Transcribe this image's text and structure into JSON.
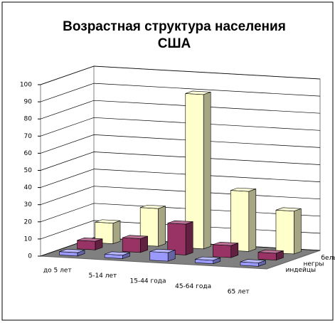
{
  "chart_data": {
    "type": "bar3d",
    "title": "Возрастная структура населения США",
    "categories": [
      "до 5 лет",
      "5-14 лет",
      "15-44 года",
      "45-64 года",
      "65 лет"
    ],
    "series": [
      {
        "name": "индейцы",
        "color": "#9999ff",
        "values": [
          2,
          2,
          5,
          2,
          2
        ]
      },
      {
        "name": "негры",
        "color": "#993366",
        "values": [
          5,
          8,
          18,
          7,
          4
        ]
      },
      {
        "name": "белые",
        "color": "#ffffcc",
        "values": [
          12,
          22,
          90,
          35,
          25
        ]
      }
    ],
    "ylim": [
      0,
      100
    ],
    "yticks": [
      0,
      10,
      20,
      30,
      40,
      50,
      60,
      70,
      80,
      90,
      100
    ],
    "grid": true
  }
}
